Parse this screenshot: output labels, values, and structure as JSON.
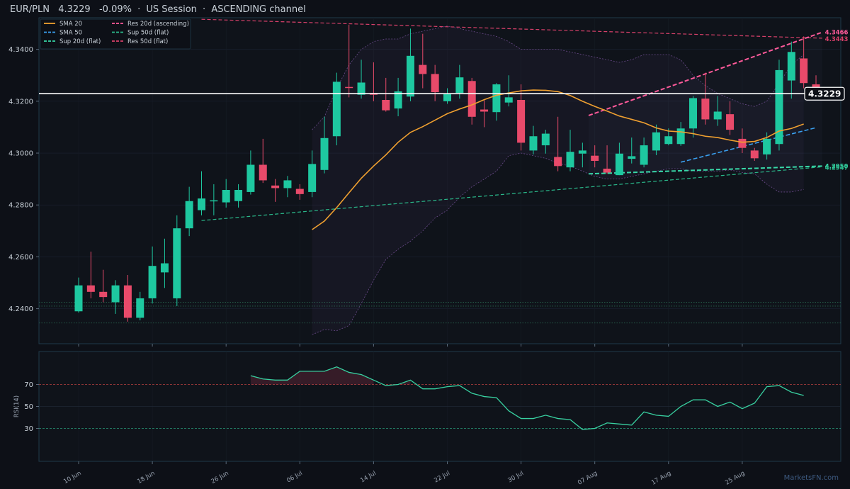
{
  "header": {
    "symbol": "EUR/PLN",
    "price": "4.3229",
    "change": "-0.09%",
    "sep1": "·",
    "session": "US Session",
    "sep2": "·",
    "channel": "ASCENDING channel"
  },
  "watermark": "MarketsFN.com",
  "colors": {
    "background": "#0d1017",
    "panel": "#0f131a",
    "up": "#1ec8a0",
    "down": "#e84a6a",
    "sma20": "#f0a030",
    "sma50": "#3aa0f0",
    "sup20": "#38d8a8",
    "res20": "#ff5a9a",
    "sup50": "#2ab88a",
    "res50": "#d8406a",
    "rsi": "#38d0a0",
    "price_line": "#ffffff"
  },
  "chart_data": [
    {
      "type": "candlestick",
      "ylim": [
        4.2265,
        4.3522
      ],
      "yticks": [
        "4.2400",
        "4.2600",
        "4.2800",
        "4.3000",
        "4.3200",
        "4.3400"
      ],
      "xticks": [
        {
          "label": "10 Jun",
          "index": 0
        },
        {
          "label": "18 Jun",
          "index": 6
        },
        {
          "label": "26 Jun",
          "index": 12
        },
        {
          "label": "06 Jul",
          "index": 18
        },
        {
          "label": "14 Jul",
          "index": 24
        },
        {
          "label": "22 Jul",
          "index": 30
        },
        {
          "label": "30 Jul",
          "index": 36
        },
        {
          "label": "07 Aug",
          "index": 42
        },
        {
          "label": "17 Aug",
          "index": 48
        },
        {
          "label": "25 Aug",
          "index": 54
        }
      ],
      "ohlc": [
        [
          4.239,
          4.252,
          4.2385,
          4.249
        ],
        [
          4.249,
          4.262,
          4.244,
          4.2465
        ],
        [
          4.2465,
          4.255,
          4.2425,
          4.2445
        ],
        [
          4.2425,
          4.251,
          4.238,
          4.249
        ],
        [
          4.249,
          4.253,
          4.235,
          4.2365
        ],
        [
          4.2365,
          4.2465,
          4.2355,
          4.244
        ],
        [
          4.244,
          4.264,
          4.242,
          4.2565
        ],
        [
          4.254,
          4.267,
          4.248,
          4.2575
        ],
        [
          4.244,
          4.276,
          4.241,
          4.271
        ],
        [
          4.271,
          4.287,
          4.268,
          4.2815
        ],
        [
          4.278,
          4.293,
          4.276,
          4.2825
        ],
        [
          4.2818,
          4.288,
          4.276,
          4.2818
        ],
        [
          4.281,
          4.29,
          4.279,
          4.2858
        ],
        [
          4.2815,
          4.288,
          4.279,
          4.2858
        ],
        [
          4.285,
          4.301,
          4.284,
          4.2955
        ],
        [
          4.2955,
          4.3055,
          4.2885,
          4.2895
        ],
        [
          4.2875,
          4.29,
          4.2812,
          4.2865
        ],
        [
          4.2865,
          4.2912,
          4.283,
          4.2895
        ],
        [
          4.2862,
          4.288,
          4.282,
          4.2842
        ],
        [
          4.285,
          4.301,
          4.283,
          4.2958
        ],
        [
          4.2935,
          4.314,
          4.2922,
          4.3058
        ],
        [
          4.3065,
          4.331,
          4.303,
          4.3275
        ],
        [
          4.3255,
          4.3495,
          4.3215,
          4.3252
        ],
        [
          4.3225,
          4.336,
          4.321,
          4.3272
        ],
        [
          4.3232,
          4.335,
          4.32,
          4.3225
        ],
        [
          4.3205,
          4.329,
          4.316,
          4.3165
        ],
        [
          4.3172,
          4.329,
          4.3142,
          4.3238
        ],
        [
          4.3218,
          4.348,
          4.32,
          4.3375
        ],
        [
          4.334,
          4.346,
          4.325,
          4.3305
        ],
        [
          4.3305,
          4.334,
          4.32,
          4.3235
        ],
        [
          4.32,
          4.325,
          4.319,
          4.3228
        ],
        [
          4.3232,
          4.334,
          4.321,
          4.3292
        ],
        [
          4.3278,
          4.329,
          4.311,
          4.314
        ],
        [
          4.3168,
          4.3205,
          4.31,
          4.316
        ],
        [
          4.3158,
          4.327,
          4.3125,
          4.3265
        ],
        [
          4.3195,
          4.33,
          4.318,
          4.3215
        ],
        [
          4.3205,
          4.3265,
          4.301,
          4.304
        ],
        [
          4.301,
          4.3105,
          4.2995,
          4.3065
        ],
        [
          4.303,
          4.309,
          4.2998,
          4.3075
        ],
        [
          4.2985,
          4.314,
          4.293,
          4.295
        ],
        [
          4.2945,
          4.309,
          4.293,
          4.3005
        ],
        [
          4.2998,
          4.304,
          4.2945,
          4.301
        ],
        [
          4.299,
          4.303,
          4.2945,
          4.297
        ],
        [
          4.294,
          4.303,
          4.292,
          4.2925
        ],
        [
          4.2915,
          4.304,
          4.2915,
          4.2998
        ],
        [
          4.2978,
          4.306,
          4.296,
          4.2988
        ],
        [
          4.2955,
          4.306,
          4.2945,
          4.303
        ],
        [
          4.301,
          4.311,
          4.2992,
          4.308
        ],
        [
          4.3035,
          4.3095,
          4.303,
          4.3065
        ],
        [
          4.3035,
          4.312,
          4.3028,
          4.3095
        ],
        [
          4.3095,
          4.322,
          4.306,
          4.3212
        ],
        [
          4.321,
          4.331,
          4.311,
          4.313
        ],
        [
          4.313,
          4.322,
          4.3105,
          4.316
        ],
        [
          4.315,
          4.32,
          4.307,
          4.309
        ],
        [
          4.3055,
          4.3095,
          4.3,
          4.302
        ],
        [
          4.301,
          4.302,
          4.297,
          4.298
        ],
        [
          4.2995,
          4.308,
          4.2975,
          4.3055
        ],
        [
          4.3035,
          4.336,
          4.301,
          4.332
        ],
        [
          4.328,
          4.343,
          4.321,
          4.339
        ],
        [
          4.3365,
          4.345,
          4.325,
          4.327
        ],
        [
          4.3265,
          4.33,
          4.3225,
          4.325
        ]
      ],
      "sma20": {
        "start_index": 19,
        "values": [
          4.2705,
          4.2738,
          4.279,
          4.2847,
          4.2903,
          4.295,
          4.2993,
          4.3042,
          4.308,
          4.3102,
          4.3127,
          4.3152,
          4.317,
          4.3186,
          4.3206,
          4.3223,
          4.3232,
          4.324,
          4.3243,
          4.3242,
          4.3237,
          4.3222,
          4.32,
          4.318,
          4.3162,
          4.3143,
          4.313,
          4.3117,
          4.3097,
          4.3085,
          4.3082,
          4.3075,
          4.3065,
          4.306,
          4.305,
          4.3042,
          4.3045,
          4.306,
          4.3085,
          4.3095,
          4.3112
        ]
      },
      "sma50": {
        "from": [
          49,
          4.2965
        ],
        "to": [
          60,
          4.3098
        ]
      },
      "bollinger": {
        "start_index": 19,
        "upper": [
          4.309,
          4.314,
          4.325,
          4.334,
          4.34,
          4.343,
          4.344,
          4.344,
          4.346,
          4.347,
          4.348,
          4.349,
          4.348,
          4.347,
          4.346,
          4.345,
          4.343,
          4.34,
          4.34,
          4.34,
          4.34,
          4.339,
          4.338,
          4.337,
          4.336,
          4.335,
          4.336,
          4.338,
          4.338,
          4.338,
          4.336,
          4.33,
          4.326,
          4.323,
          4.321,
          4.319,
          4.318,
          4.32,
          4.327,
          4.334,
          4.338
        ],
        "lower": [
          4.23,
          4.232,
          4.2315,
          4.2335,
          4.242,
          4.251,
          4.259,
          4.263,
          4.266,
          4.27,
          4.275,
          4.278,
          4.283,
          4.287,
          4.29,
          4.293,
          4.299,
          4.3,
          4.299,
          4.298,
          4.296,
          4.295,
          4.293,
          4.291,
          4.29,
          4.29,
          4.291,
          4.292,
          4.293,
          4.294,
          4.294,
          4.293,
          4.293,
          4.293,
          4.2935,
          4.2925,
          4.292,
          4.288,
          4.285,
          4.285,
          4.286
        ]
      },
      "channel_fill": {
        "from": [
          41.5,
          4.3145,
          4.292
        ],
        "to": [
          60.5,
          4.3466,
          4.295
        ]
      },
      "levels": {
        "res20": {
          "from": [
            41.5,
            4.3145
          ],
          "to": [
            60.5,
            4.3466
          ],
          "label": "4.3466"
        },
        "res50": {
          "from": [
            10,
            4.3516
          ],
          "to": [
            60.5,
            4.3443
          ],
          "label": "4.3443"
        },
        "sup20": {
          "from": [
            41.5,
            4.292
          ],
          "to": [
            60.5,
            4.295
          ],
          "label": "4.2950"
        },
        "sup50": {
          "from": [
            10,
            4.274
          ],
          "to": [
            60.5,
            4.2947
          ],
          "label": "4.2947"
        },
        "price_line": 4.3229,
        "dotted": [
          4.2425,
          4.241,
          4.2345
        ]
      },
      "legend": [
        {
          "label": "SMA 20",
          "style": "solid",
          "color": "#f0a030"
        },
        {
          "label": "Res 20d (ascending)",
          "style": "dashed",
          "color": "#ff5a9a"
        },
        {
          "label": "SMA 50",
          "style": "dashed",
          "color": "#3aa0f0"
        },
        {
          "label": "Sup 50d (flat)",
          "style": "dashed",
          "color": "#2ab88a"
        },
        {
          "label": "Sup 20d (flat)",
          "style": "dashed",
          "color": "#38d8a8"
        },
        {
          "label": "Res 50d (flat)",
          "style": "dashed",
          "color": "#d8406a"
        }
      ],
      "price_tag": "4.3229"
    },
    {
      "type": "line",
      "ylabel": "RSI(14)",
      "ylim": [
        0,
        100
      ],
      "yticks": [
        "30",
        "50",
        "70"
      ],
      "overbought": 70,
      "oversold": 30,
      "start_index": 14,
      "values": [
        78,
        75,
        74,
        74,
        82,
        82,
        82,
        86,
        81,
        79,
        74,
        69,
        70,
        74,
        66,
        66,
        68,
        69,
        62,
        59,
        58,
        46,
        39,
        39,
        42,
        39,
        38,
        29,
        30,
        35,
        34,
        33,
        45,
        42,
        41,
        50,
        56,
        56,
        50,
        54,
        48,
        53,
        68,
        69,
        63,
        60
      ]
    }
  ]
}
